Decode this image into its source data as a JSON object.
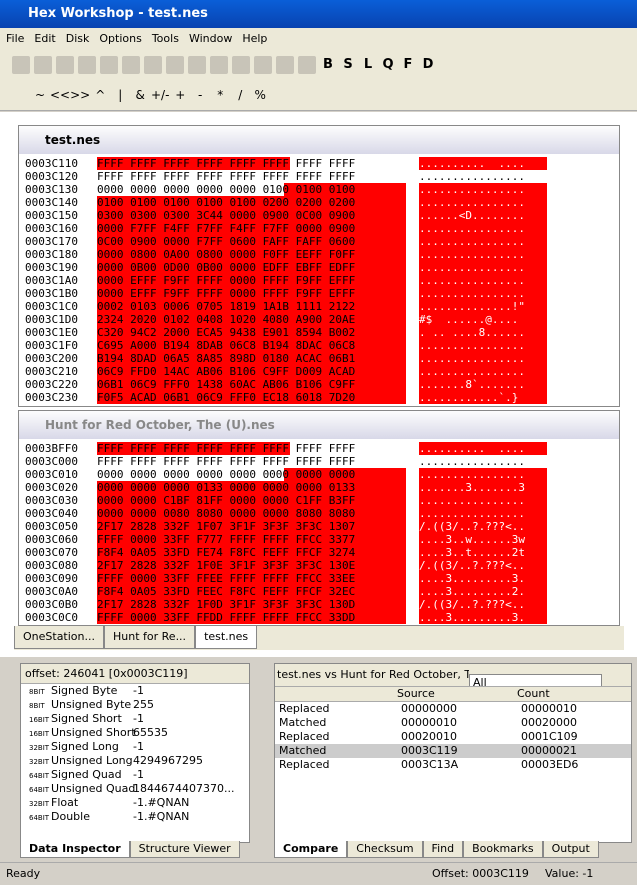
{
  "window": {
    "title": "Hex Workshop - test.nes"
  },
  "menu": [
    "File",
    "Edit",
    "Disk",
    "Options",
    "Tools",
    "Window",
    "Help"
  ],
  "toolbar": {
    "letters": [
      "B",
      "S",
      "L",
      "Q",
      "F",
      "D"
    ],
    "ops": [
      "~",
      "<<",
      ">>",
      "^",
      "|",
      "&",
      "+/-",
      "+",
      "-",
      "*",
      "/",
      "%"
    ]
  },
  "documents": [
    {
      "title": "test.nes",
      "rows": [
        [
          "0003C110",
          "FFFF FFFF FFFF FFFF FFFF FFFF FFFF FFFF",
          "..........  ...."
        ],
        [
          "0003C120",
          "FFFF FFFF FFFF FFFF FFFF FFFF FFFF FFFF",
          "................"
        ],
        [
          "0003C130",
          "0000 0000 0000 0000 0000 0100 0100 0100",
          "................"
        ],
        [
          "0003C140",
          "0100 0100 0100 0100 0100 0200 0200 0200",
          "................"
        ],
        [
          "0003C150",
          "0300 0300 0300 3C44 0000 0900 0C00 0900",
          "......<D........"
        ],
        [
          "0003C160",
          "0000 F7FF F4FF F7FF F4FF F7FF 0000 0900",
          "................"
        ],
        [
          "0003C170",
          "0C00 0900 0000 F7FF 0600 FAFF FAFF 0600",
          "................"
        ],
        [
          "0003C180",
          "0000 0800 0A00 0800 0000 F0FF EEFF F0FF",
          "................"
        ],
        [
          "0003C190",
          "0000 0B00 0D00 0B00 0000 EDFF EBFF EDFF",
          "................"
        ],
        [
          "0003C1A0",
          "0000 EFFF F9FF FFFF 0000 FFFF F9FF EFFF",
          "................"
        ],
        [
          "0003C1B0",
          "0000 EFFF F9FF FFFF 0000 FFFF F9FF EFFF",
          "................"
        ],
        [
          "0003C1C0",
          "0002 0103 0006 0705 1819 1A1B 1111 2122",
          "..............!\""
        ],
        [
          "0003C1D0",
          "2324 2020 0102 0408 1020 4080 A900 20AE",
          "#$  ......@.... "
        ],
        [
          "0003C1E0",
          "C320 94C2 2000 ECA5 9438 E901 8594 B002",
          ". .. ....8......"
        ],
        [
          "0003C1F0",
          "C695 A000 B194 8DAB 06C8 B194 8DAC 06C8",
          "................"
        ],
        [
          "0003C200",
          "B194 8DAD 06A5 8A85 898D 0180 ACAC 06B1",
          "................"
        ],
        [
          "0003C210",
          "06C9 FFD0 14AC AB06 B106 C9FF D009 ACAD",
          "................"
        ],
        [
          "0003C220",
          "06B1 06C9 FFF0 1438 60AC AB06 B106 C9FF",
          ".......8`......."
        ],
        [
          "0003C230",
          "F0F5 ACAD 06B1 06C9 FFF0 EC18 6018 7D20",
          "............`.}"
        ]
      ]
    },
    {
      "title": "Hunt for Red October, The (U).nes",
      "rows": [
        [
          "0003BFF0",
          "FFFF FFFF FFFF FFFF FFFF FFFF FFFF FFFF",
          "..........  ...."
        ],
        [
          "0003C000",
          "FFFF FFFF FFFF FFFF FFFF FFFF FFFF FFFF",
          "................"
        ],
        [
          "0003C010",
          "0000 0000 0000 0000 0000 0000 0000 0000",
          "................"
        ],
        [
          "0003C020",
          "0000 0000 0000 0133 0000 0000 0000 0133",
          ".......3.......3"
        ],
        [
          "0003C030",
          "0000 0000 C1BF 81FF 0000 0000 C1FF B3FF",
          "................"
        ],
        [
          "0003C040",
          "0000 0000 0080 8080 0000 0000 8080 8080",
          "................"
        ],
        [
          "0003C050",
          "2F17 2828 332F 1F07 3F1F 3F3F 3F3C 1307",
          "/.((3/..?.???<.."
        ],
        [
          "0003C060",
          "FFFF 0000 33FF F777 FFFF FFFF FFCC 3377",
          "....3..w......3w"
        ],
        [
          "0003C070",
          "F8F4 0A05 33FD FE74 F8FC FEFF FFCF 3274",
          "....3..t......2t"
        ],
        [
          "0003C080",
          "2F17 2828 332F 1F0E 3F1F 3F3F 3F3C 130E",
          "/.((3/..?.???<.."
        ],
        [
          "0003C090",
          "FFFF 0000 33FF FFEE FFFF FFFF FFCC 33EE",
          "....3.........3."
        ],
        [
          "0003C0A0",
          "F8F4 0A05 33FD FEEC F8FC FEFF FFCF 32EC",
          "....3.........2."
        ],
        [
          "0003C0B0",
          "2F17 2828 332F 1F0D 3F1F 3F3F 3F3C 130D",
          "/.((3/..?.???<.."
        ],
        [
          "0003C0C0",
          "FFFF 0000 33FF FFDD FFFF FFFF FFCC 33DD",
          "....3.........3."
        ]
      ]
    }
  ],
  "doc_tabs": [
    "OneStation...",
    "Hunt for Re...",
    "test.nes"
  ],
  "inspector": {
    "offset": "offset: 246041 [0x0003C119]",
    "rows": [
      [
        "8BIT",
        "Signed Byte",
        "-1"
      ],
      [
        "8BIT",
        "Unsigned Byte",
        "255"
      ],
      [
        "16BIT",
        "Signed Short",
        "-1"
      ],
      [
        "16BIT",
        "Unsigned Short",
        "65535"
      ],
      [
        "32BIT",
        "Signed Long",
        "-1"
      ],
      [
        "32BIT",
        "Unsigned Long",
        "4294967295"
      ],
      [
        "64BIT",
        "Signed Quad",
        "-1"
      ],
      [
        "64BIT",
        "Unsigned Quad",
        "1844674407370..."
      ],
      [
        "32BIT",
        "Float",
        "-1.#QNAN"
      ],
      [
        "64BIT",
        "Double",
        "-1.#QNAN"
      ]
    ],
    "tabs": [
      "Data Inspector",
      "Structure Viewer"
    ]
  },
  "compare": {
    "header": "test.nes vs Hunt for Red October, T...",
    "filter": "All",
    "columns": [
      "Source",
      "Count"
    ],
    "rows": [
      [
        "Replaced",
        "00000000",
        "00000010"
      ],
      [
        "Matched",
        "00000010",
        "00020000"
      ],
      [
        "Replaced",
        "00020010",
        "0001C109"
      ],
      [
        "Matched",
        "0003C119",
        "00000021"
      ],
      [
        "Replaced",
        "0003C13A",
        "00003ED6"
      ]
    ],
    "tabs": [
      "Compare",
      "Checksum",
      "Find",
      "Bookmarks",
      "Output"
    ]
  },
  "status": {
    "text": "Ready",
    "offset": "Offset: 0003C119",
    "value": "Value: -1"
  }
}
